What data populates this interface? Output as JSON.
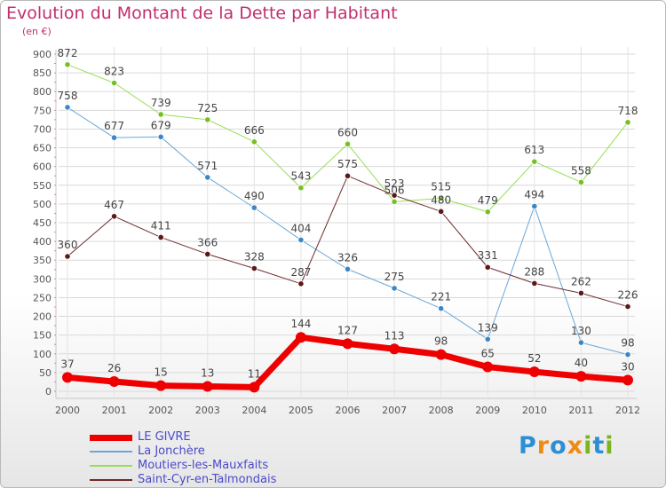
{
  "title": "Evolution du Montant de la Dette par Habitant",
  "unit": "(en €)",
  "brand": {
    "letters": [
      "P",
      "r",
      "o",
      "x",
      "i",
      "t",
      "i"
    ],
    "colors": [
      "#2c8fd6",
      "#f08a14",
      "#2c8fd6",
      "#f08a14",
      "#7ab521",
      "#2c8fd6",
      "#7ab521"
    ]
  },
  "chart_data": {
    "type": "line",
    "x": [
      "2000",
      "2001",
      "2002",
      "2003",
      "2004",
      "2005",
      "2006",
      "2007",
      "2008",
      "2009",
      "2010",
      "2011",
      "2012"
    ],
    "ylim": [
      0,
      900
    ],
    "yticks": [
      "0",
      "50",
      "100",
      "150",
      "200",
      "250",
      "300",
      "350",
      "400",
      "450",
      "500",
      "550",
      "600",
      "650",
      "700",
      "750",
      "800",
      "850",
      "900"
    ],
    "grid": true,
    "legend": "bottom-left",
    "series": [
      {
        "name": "Moutiers-les-Mauxfaits",
        "color": "#99dd55",
        "dot": "#77c024",
        "width": 1,
        "values": [
          872,
          823,
          739,
          725,
          666,
          543,
          660,
          506,
          515,
          479,
          613,
          558,
          718
        ]
      },
      {
        "name": "La Jonchère",
        "color": "#6aa8d8",
        "dot": "#3d86c6",
        "width": 1,
        "values": [
          758,
          677,
          679,
          571,
          490,
          404,
          326,
          275,
          221,
          139,
          494,
          130,
          98
        ]
      },
      {
        "name": "Saint-Cyr-en-Talmondais",
        "color": "#6e2a2a",
        "dot": "#5a1818",
        "width": 1,
        "values": [
          360,
          467,
          411,
          366,
          328,
          287,
          575,
          523,
          480,
          331,
          288,
          262,
          226
        ]
      },
      {
        "name": "LE GIVRE",
        "color": "#ee0000",
        "dot": "#ee0000",
        "width": 7,
        "values": [
          37,
          26,
          15,
          13,
          11,
          144,
          127,
          113,
          98,
          65,
          52,
          40,
          30
        ]
      }
    ],
    "legend_order": [
      "LE GIVRE",
      "La Jonchère",
      "Moutiers-les-Mauxfaits",
      "Saint-Cyr-en-Talmondais"
    ]
  }
}
